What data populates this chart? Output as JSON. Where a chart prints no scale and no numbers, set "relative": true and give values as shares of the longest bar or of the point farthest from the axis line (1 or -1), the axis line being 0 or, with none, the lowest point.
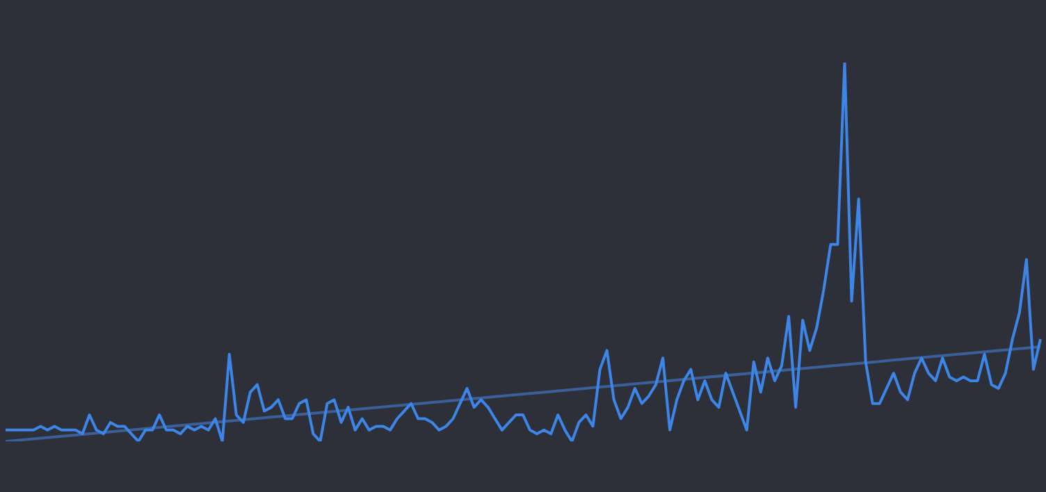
{
  "chart_data": {
    "type": "line",
    "relative": true,
    "legend": false,
    "marker": "none",
    "categories": [
      null,
      null,
      null,
      null,
      null,
      null,
      null,
      null,
      null,
      null,
      null,
      null,
      null,
      null,
      null,
      null,
      null,
      null,
      null,
      null,
      null,
      null,
      null,
      null,
      null,
      null,
      null,
      null,
      null,
      null,
      null,
      null,
      null,
      null,
      null,
      null,
      null,
      null,
      null,
      null,
      null,
      null,
      null,
      null,
      null,
      null,
      null,
      null,
      null,
      null,
      null,
      null,
      null,
      null,
      null,
      null,
      null,
      null,
      null,
      null,
      null,
      null,
      null,
      null,
      null,
      null,
      null,
      null,
      null,
      null,
      null,
      null,
      null,
      null,
      null,
      null,
      null,
      null,
      null,
      null,
      null,
      null,
      null,
      null,
      null,
      null,
      null,
      null,
      null,
      null,
      null,
      null,
      null,
      null,
      null,
      null,
      null,
      null,
      null,
      null,
      null,
      null,
      null,
      null,
      null,
      null,
      null,
      null,
      null,
      null,
      null,
      null,
      null,
      null,
      null,
      null,
      null,
      null,
      null,
      null,
      null,
      null,
      null,
      null,
      null,
      null,
      null,
      null,
      null,
      null,
      null,
      null,
      null,
      null,
      null,
      null,
      null,
      null,
      null,
      null,
      null,
      null,
      null,
      null,
      null,
      null,
      null,
      null,
      null
    ],
    "series": [
      {
        "color": "#3d85e6",
        "values": [
          0.03,
          0.03,
          0.03,
          0.03,
          0.03,
          0.04,
          0.03,
          0.04,
          0.03,
          0.03,
          0.03,
          0.02,
          0.07,
          0.03,
          0.02,
          0.05,
          0.04,
          0.04,
          0.02,
          0.0,
          0.03,
          0.03,
          0.07,
          0.03,
          0.03,
          0.02,
          0.04,
          0.03,
          0.04,
          0.03,
          0.06,
          0,
          0.23,
          0.07,
          0.05,
          0.13,
          0.15,
          0.08,
          0.09,
          0.11,
          0.06,
          0.06,
          0.1,
          0.11,
          0.02,
          0.0,
          0.1,
          0.11,
          0.05,
          0.09,
          0.03,
          0.06,
          0.03,
          0.04,
          0.04,
          0.03,
          0.06,
          0.08,
          0.1,
          0.06,
          0.06,
          0.05,
          0.03,
          0.04,
          0.06,
          0.1,
          0.14,
          0.09,
          0.11,
          0.09,
          0.06,
          0.03,
          0.05,
          0.07,
          0.07,
          0.03,
          0.02,
          0.03,
          0.02,
          0.07,
          0.03,
          0.0,
          0.05,
          0.07,
          0.04,
          0.19,
          0.24,
          0.11,
          0.06,
          0.09,
          0.14,
          0.1,
          0.12,
          0.15,
          0.22,
          0.03,
          0.11,
          0.16,
          0.19,
          0.11,
          0.16,
          0.11,
          0.09,
          0.18,
          0.13,
          0.08,
          0.03,
          0.21,
          0.13,
          0.22,
          0.16,
          0.2,
          0.33,
          0.09,
          0.32,
          0.24,
          0.3,
          0.4,
          0.52,
          0.52,
          1,
          0.37,
          0.64,
          0.21,
          0.1,
          0.1,
          0.14,
          0.18,
          0.13,
          0.11,
          0.18,
          0.22,
          0.18,
          0.16,
          0.22,
          0.17,
          0.16,
          0.17,
          0.16,
          0.16,
          0.23,
          0.15,
          0.14,
          0.18,
          0.27,
          0.34,
          0.48,
          0.19,
          0.27
        ]
      },
      {
        "color": "#3a5f99",
        "values": [
          0,
          null,
          null,
          null,
          null,
          null,
          null,
          null,
          null,
          null,
          null,
          null,
          null,
          null,
          null,
          null,
          null,
          null,
          null,
          null,
          null,
          null,
          null,
          null,
          null,
          null,
          null,
          null,
          null,
          null,
          null,
          null,
          null,
          null,
          null,
          null,
          null,
          null,
          null,
          null,
          null,
          null,
          null,
          null,
          null,
          null,
          null,
          null,
          null,
          null,
          null,
          null,
          null,
          null,
          null,
          null,
          null,
          null,
          null,
          null,
          null,
          null,
          null,
          null,
          null,
          null,
          null,
          null,
          null,
          null,
          null,
          null,
          null,
          null,
          null,
          null,
          null,
          null,
          null,
          null,
          null,
          null,
          null,
          null,
          null,
          null,
          null,
          null,
          null,
          null,
          null,
          null,
          null,
          null,
          null,
          null,
          null,
          null,
          null,
          null,
          null,
          null,
          null,
          null,
          null,
          null,
          null,
          null,
          null,
          null,
          null,
          null,
          null,
          null,
          null,
          null,
          null,
          null,
          null,
          null,
          null,
          null,
          null,
          null,
          null,
          null,
          null,
          null,
          null,
          null,
          null,
          null,
          null,
          null,
          null,
          null,
          null,
          null,
          null,
          null,
          null,
          null,
          null,
          null,
          null,
          null,
          null,
          null,
          0.25
        ]
      }
    ]
  }
}
